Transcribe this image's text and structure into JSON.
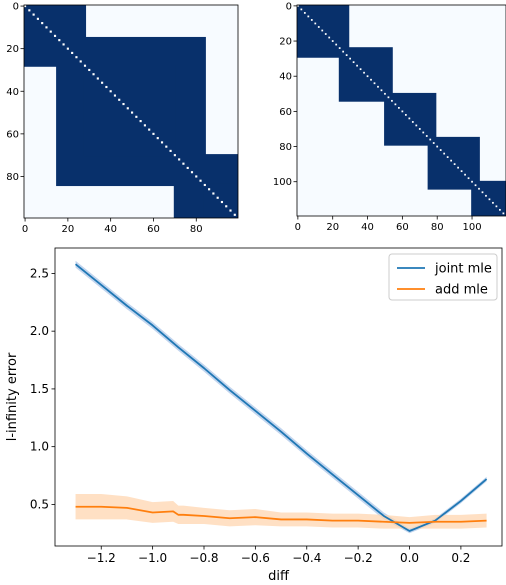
{
  "chart_data": [
    {
      "type": "heatmap",
      "n": 100,
      "colors": {
        "filled": "#08306b",
        "empty": "#f7fbff",
        "diagonal": "#ffffff"
      },
      "blocks": [
        [
          0,
          15
        ],
        [
          0,
          28
        ],
        [
          15,
          84
        ],
        [
          28,
          70
        ],
        [
          70,
          99
        ],
        [
          84,
          99
        ]
      ],
      "x_ticks": [
        "0",
        "20",
        "40",
        "60",
        "80"
      ],
      "y_ticks": [
        "0",
        "20",
        "40",
        "60",
        "80"
      ],
      "xlim": [
        0,
        100
      ],
      "ylim": [
        0,
        100
      ]
    },
    {
      "type": "heatmap",
      "n": 120,
      "colors": {
        "filled": "#08306b",
        "empty": "#f7fbff",
        "diagonal": "#ffffff"
      },
      "blocks": [
        [
          0,
          29
        ],
        [
          24,
          54
        ],
        [
          50,
          79
        ],
        [
          75,
          104
        ],
        [
          100,
          119
        ]
      ],
      "x_ticks": [
        "0",
        "20",
        "40",
        "60",
        "80",
        "100"
      ],
      "y_ticks": [
        "0",
        "20",
        "40",
        "60",
        "80",
        "100"
      ],
      "xlim": [
        0,
        120
      ],
      "ylim": [
        0,
        120
      ]
    },
    {
      "type": "line",
      "xlabel": "diff",
      "ylabel": "l-infinity error",
      "xlim": [
        -1.38,
        0.36
      ],
      "ylim": [
        0.14,
        2.72
      ],
      "x_ticks": [
        "−1.2",
        "−1.0",
        "−0.8",
        "−0.6",
        "−0.4",
        "−0.2",
        "0.0",
        "0.2"
      ],
      "x_tick_values": [
        -1.2,
        -1.0,
        -0.8,
        -0.6,
        -0.4,
        -0.2,
        0.0,
        0.2
      ],
      "y_ticks": [
        "0.5",
        "1.0",
        "1.5",
        "2.0",
        "2.5"
      ],
      "y_tick_values": [
        0.5,
        1.0,
        1.5,
        2.0,
        2.5
      ],
      "legend_placement": "top-right",
      "series": [
        {
          "name": "joint mle",
          "color": "#1f77b4",
          "band_color": "#aec7e8",
          "x": [
            -1.3,
            -1.2,
            -1.1,
            -1.0,
            -0.9,
            -0.8,
            -0.7,
            -0.6,
            -0.5,
            -0.4,
            -0.3,
            -0.2,
            -0.1,
            0.0,
            0.1,
            0.2,
            0.3
          ],
          "y": [
            2.58,
            2.4,
            2.22,
            2.05,
            1.86,
            1.68,
            1.49,
            1.31,
            1.13,
            0.94,
            0.76,
            0.58,
            0.4,
            0.27,
            0.36,
            0.53,
            0.72
          ],
          "band": [
            0.03,
            0.03,
            0.03,
            0.03,
            0.03,
            0.03,
            0.03,
            0.03,
            0.03,
            0.03,
            0.03,
            0.03,
            0.03,
            0.02,
            0.02,
            0.02,
            0.02
          ]
        },
        {
          "name": "add mle",
          "color": "#ff7f0e",
          "band_color": "#ffd5b0",
          "x": [
            -1.3,
            -1.2,
            -1.1,
            -1.0,
            -0.92,
            -0.9,
            -0.88,
            -0.8,
            -0.7,
            -0.6,
            -0.5,
            -0.4,
            -0.3,
            -0.2,
            -0.1,
            0.0,
            0.1,
            0.2,
            0.3
          ],
          "y": [
            0.48,
            0.48,
            0.47,
            0.43,
            0.44,
            0.41,
            0.41,
            0.4,
            0.38,
            0.39,
            0.37,
            0.37,
            0.36,
            0.36,
            0.35,
            0.34,
            0.35,
            0.35,
            0.36
          ],
          "band": [
            0.11,
            0.11,
            0.1,
            0.09,
            0.09,
            0.08,
            0.08,
            0.07,
            0.07,
            0.07,
            0.06,
            0.06,
            0.06,
            0.06,
            0.06,
            0.05,
            0.06,
            0.06,
            0.06
          ]
        }
      ]
    }
  ]
}
